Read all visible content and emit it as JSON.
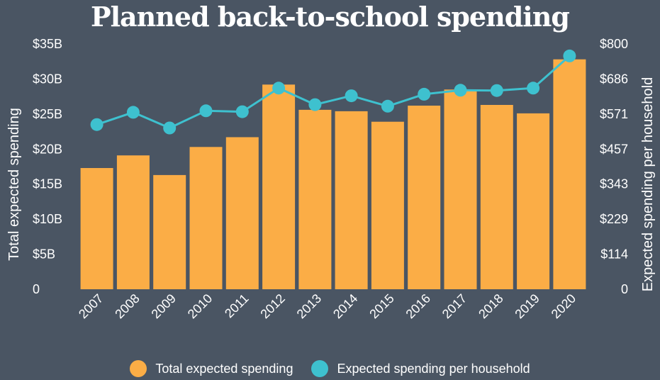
{
  "chart_data": {
    "type": "bar+line",
    "title": "Planned back-to-school spending",
    "categories": [
      "2007",
      "2008",
      "2009",
      "2010",
      "2011",
      "2012",
      "2013",
      "2014",
      "2015",
      "2016",
      "2017",
      "2018",
      "2019",
      "2020"
    ],
    "series": [
      {
        "name": "Total expected spending",
        "type": "bar",
        "axis": "left",
        "color": "#fbad46",
        "values": [
          17.3,
          19.1,
          16.3,
          20.3,
          21.7,
          29.2,
          25.6,
          25.4,
          23.9,
          26.2,
          28.5,
          26.3,
          25.1,
          32.8
        ]
      },
      {
        "name": "Expected spending per household",
        "type": "line",
        "axis": "right",
        "color": "#3ec1cf",
        "values": [
          537,
          577,
          526,
          582,
          579,
          656,
          602,
          631,
          597,
          636,
          649,
          648,
          656,
          761
        ]
      }
    ],
    "y_left": {
      "label": "Total expected spending",
      "range": [
        0,
        35
      ],
      "ticks": [
        0,
        5,
        10,
        15,
        20,
        25,
        30,
        35
      ],
      "tick_labels": [
        "0",
        "$5B",
        "$10B",
        "$15B",
        "$20B",
        "$25B",
        "$30B",
        "$35B"
      ]
    },
    "y_right": {
      "label": "Expected spending per household",
      "range": [
        0,
        800
      ],
      "ticks": [
        0,
        114,
        229,
        343,
        457,
        571,
        686,
        800
      ],
      "tick_labels": [
        "0",
        "$114",
        "$229",
        "$343",
        "$457",
        "$571",
        "$686",
        "$800"
      ]
    },
    "grid": false,
    "legend_position": "bottom-center",
    "background_color": "#4a5563"
  }
}
